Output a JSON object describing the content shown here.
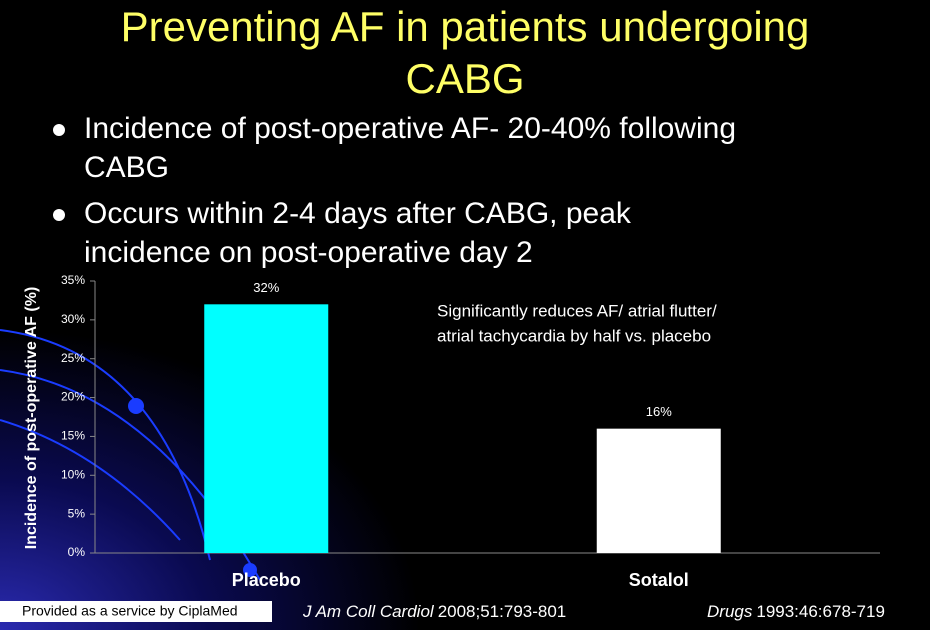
{
  "title": [
    "Preventing AF in patients undergoing",
    "CABG"
  ],
  "bullets": [
    [
      "Incidence of post-operative AF- 20-40% following",
      "CABG"
    ],
    [
      "Occurs within 2-4 days after CABG, peak",
      "incidence on post-operative day 2"
    ]
  ],
  "chart_data": {
    "type": "bar",
    "y_label": "Incidence of post-operative AF (%)",
    "categories": [
      "Placebo",
      "Sotalol"
    ],
    "values": [
      32,
      16
    ],
    "value_labels": [
      "32%",
      "16%"
    ],
    "colors": [
      "#00ffff",
      "#ffffff"
    ],
    "ylim": [
      0,
      35
    ],
    "yticks": [
      {
        "value": 0,
        "label": "0%"
      },
      {
        "value": 5,
        "label": "5%"
      },
      {
        "value": 10,
        "label": "10%"
      },
      {
        "value": 15,
        "label": "15%"
      },
      {
        "value": 20,
        "label": "20%"
      },
      {
        "value": 25,
        "label": "25%"
      },
      {
        "value": 30,
        "label": "30%"
      },
      {
        "value": 35,
        "label": "35%"
      }
    ],
    "annotation": [
      "Significantly reduces AF/ atrial flutter/",
      "atrial tachycardia by half vs. placebo"
    ]
  },
  "footer": {
    "provider": "Provided as a service by CiplaMed",
    "citation1": {
      "journal": "J Am Coll Cardiol",
      "ref": "2008;51:793-801"
    },
    "citation2": {
      "journal": "Drugs",
      "ref": "1993:46:678-719"
    }
  }
}
